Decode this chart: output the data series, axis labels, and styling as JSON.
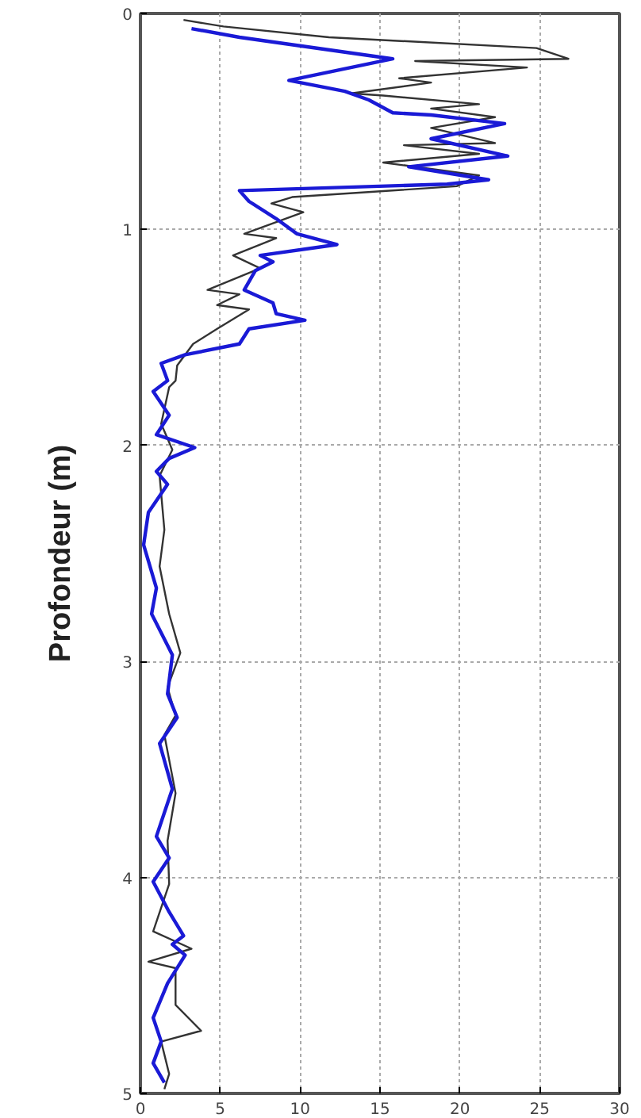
{
  "chart_data": {
    "type": "line",
    "ylabel": "Profondeur (m)",
    "xlim": [
      0,
      30
    ],
    "xticks": [
      0,
      5,
      10,
      15,
      20,
      25,
      30
    ],
    "ylim": [
      5,
      0
    ],
    "yticks": [
      0,
      1,
      2,
      3,
      4,
      5
    ],
    "grid": true,
    "line_style": "solid",
    "marker": "none",
    "series": [
      {
        "color": "#333333",
        "x": [
          2.7,
          5.2,
          11.8,
          24.8,
          26.8,
          17.2,
          24.2,
          16.2,
          18.2,
          13.2,
          15.2,
          21.2,
          18.2,
          22.2,
          18.2,
          22.2,
          16.5,
          21.2,
          15.2,
          21.2,
          19.8,
          9.5,
          8.2,
          10.2,
          6.5,
          8.5,
          5.8,
          7.5,
          4.2,
          6.2,
          4.8,
          6.8,
          4.8,
          3.3,
          2.3,
          2.2,
          1.8,
          1.3,
          2.0,
          1.2,
          1.5,
          1.2,
          1.8,
          2.5,
          1.7,
          2.2,
          1.5,
          2.2,
          1.7,
          1.8,
          0.8,
          3.2,
          0.5,
          2.2,
          2.2,
          3.8,
          1.3,
          1.8,
          1.5
        ],
        "values": [
          0.03,
          0.06,
          0.11,
          0.16,
          0.21,
          0.22,
          0.25,
          0.3,
          0.32,
          0.37,
          0.38,
          0.42,
          0.44,
          0.48,
          0.53,
          0.6,
          0.61,
          0.65,
          0.69,
          0.75,
          0.8,
          0.85,
          0.88,
          0.92,
          1.02,
          1.04,
          1.12,
          1.18,
          1.28,
          1.3,
          1.35,
          1.37,
          1.46,
          1.53,
          1.63,
          1.7,
          1.73,
          1.9,
          2.02,
          2.14,
          2.39,
          2.56,
          2.78,
          2.96,
          3.12,
          3.25,
          3.34,
          3.61,
          3.83,
          4.03,
          4.25,
          4.33,
          4.39,
          4.42,
          4.59,
          4.71,
          4.76,
          4.91,
          4.98
        ]
      },
      {
        "color": "#1a1ad6",
        "x": [
          3.2,
          6.2,
          15.8,
          9.3,
          12.8,
          14.3,
          15.8,
          18.2,
          22.8,
          18.2,
          23.0,
          16.8,
          21.8,
          19.2,
          6.2,
          6.8,
          8.5,
          9.8,
          12.3,
          7.5,
          8.3,
          7.2,
          6.5,
          8.3,
          8.5,
          10.3,
          6.8,
          6.2,
          2.8,
          1.3,
          1.7,
          0.8,
          1.8,
          1.0,
          3.4,
          1.8,
          1.0,
          1.7,
          0.5,
          0.2,
          1.0,
          0.7,
          2.0,
          1.7,
          2.3,
          1.2,
          2.0,
          1.0,
          1.8,
          0.8,
          1.8,
          2.7,
          2.0,
          2.8,
          1.7,
          0.8,
          1.3,
          0.8,
          1.5
        ],
        "values": [
          0.07,
          0.11,
          0.21,
          0.31,
          0.36,
          0.4,
          0.46,
          0.47,
          0.51,
          0.58,
          0.66,
          0.71,
          0.77,
          0.79,
          0.82,
          0.87,
          0.95,
          1.02,
          1.07,
          1.12,
          1.15,
          1.19,
          1.28,
          1.34,
          1.39,
          1.42,
          1.46,
          1.53,
          1.58,
          1.62,
          1.7,
          1.75,
          1.86,
          1.95,
          2.01,
          2.06,
          2.12,
          2.18,
          2.31,
          2.46,
          2.66,
          2.78,
          2.97,
          3.15,
          3.26,
          3.38,
          3.59,
          3.81,
          3.91,
          4.02,
          4.16,
          4.27,
          4.31,
          4.36,
          4.49,
          4.65,
          4.76,
          4.86,
          4.95
        ]
      }
    ]
  }
}
